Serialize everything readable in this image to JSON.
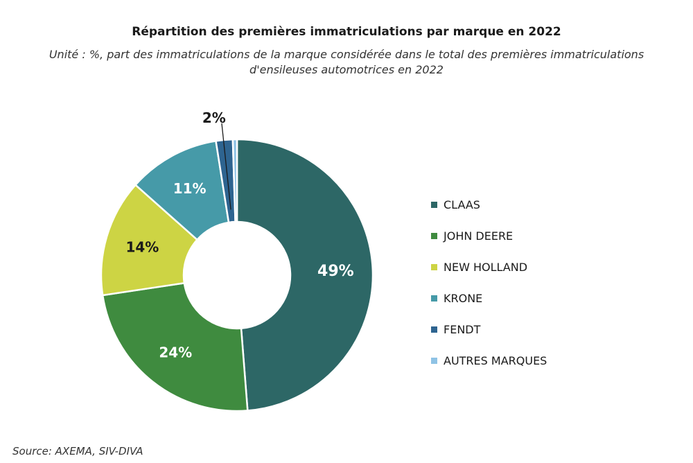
{
  "title": "Répartition des premières immatriculations par marque en 2022",
  "subtitle_line1": "Unité : %, part des immatriculations de la marque considérée dans le total des premières immatriculations",
  "subtitle_line2": "d'ensileuses automotrices en 2022",
  "source": "Source: AXEMA, SIV-DIVA",
  "chart_data": {
    "type": "pie",
    "variant": "donut",
    "categories": [
      "CLAAS",
      "JOHN DEERE",
      "NEW HOLLAND",
      "KRONE",
      "FENDT",
      "AUTRES MARQUES"
    ],
    "values": [
      49,
      24,
      14,
      11,
      2,
      0.5
    ],
    "labels": [
      "49%",
      "24%",
      "14%",
      "11%",
      "2%",
      ""
    ],
    "colors": [
      "#2d6766",
      "#3f8b3f",
      "#cdd444",
      "#469aa8",
      "#2e6490",
      "#8fc3e5"
    ],
    "label_colors": [
      "#ffffff",
      "#ffffff",
      "#1a1a1a",
      "#ffffff",
      "#1a1a1a",
      "#1a1a1a"
    ],
    "legend_position": "right"
  }
}
